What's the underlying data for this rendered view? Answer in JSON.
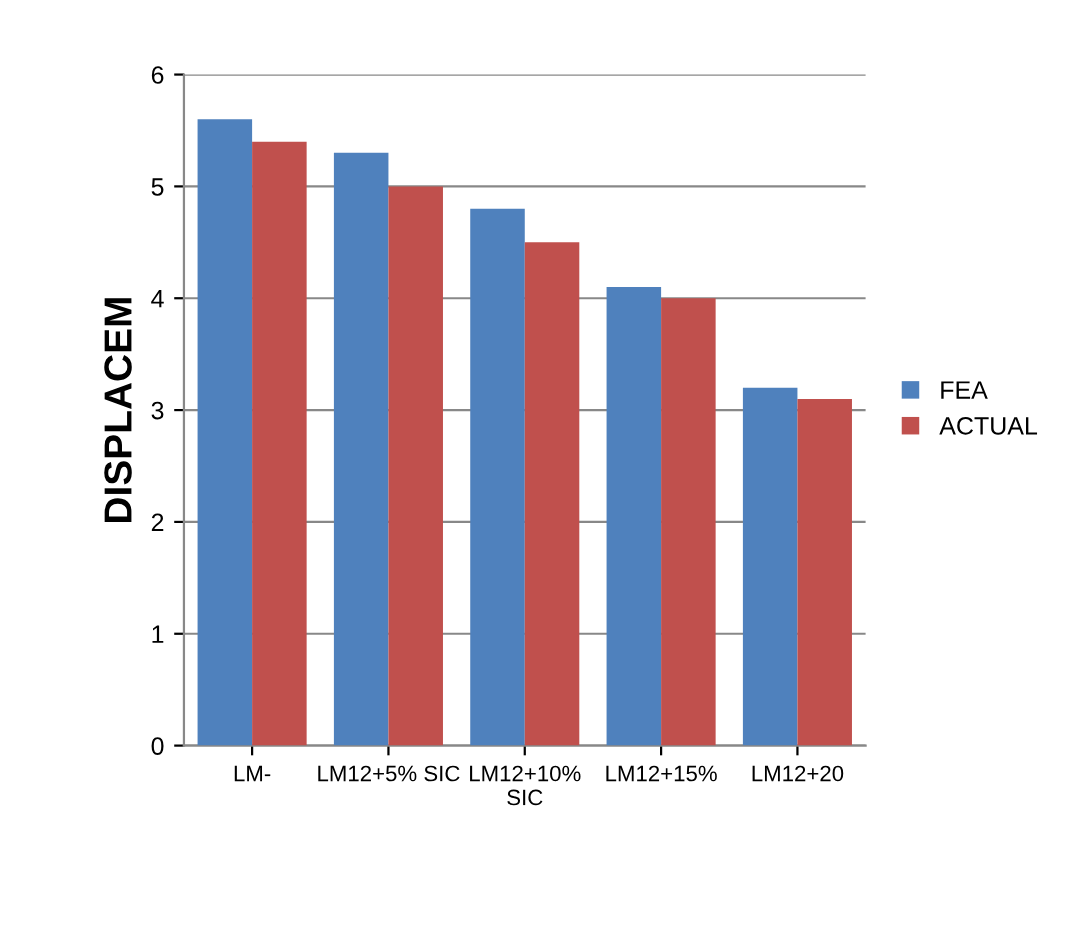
{
  "chart_data": {
    "type": "bar",
    "ylabel": "DISPLACEM",
    "categories": [
      "LM-",
      "LM12+5% SIC",
      "LM12+10%\nSIC",
      "LM12+15%",
      "LM12+20"
    ],
    "series": [
      {
        "name": "FEA",
        "color": "#4f81bd",
        "values": [
          5.6,
          5.3,
          4.8,
          4.1,
          3.2
        ]
      },
      {
        "name": "ACTUAL",
        "color": "#c0504d",
        "values": [
          5.4,
          5.0,
          4.5,
          4.0,
          3.1
        ]
      }
    ],
    "ylim": [
      0,
      6
    ],
    "yticks": [
      0,
      1,
      2,
      3,
      4,
      5,
      6
    ],
    "grid": "y",
    "legend": "right"
  }
}
